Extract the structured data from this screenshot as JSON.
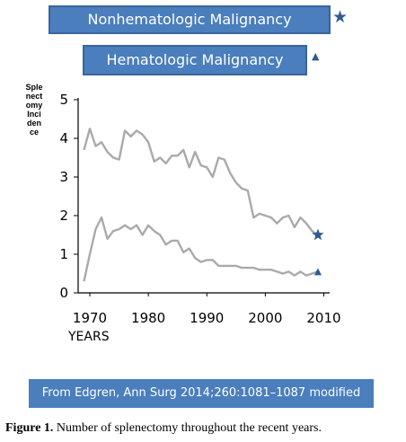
{
  "legend": {
    "nonheme_label": "Nonhematologic Malignancy",
    "heme_label": "Hematologic Malignancy",
    "star_glyph": "★",
    "triangle_glyph": "▲"
  },
  "source": "From Edgren, Ann Surg 2014;260:1081–1087 modified",
  "caption": {
    "label": "Figure 1.",
    "text": " Number of splenectomy throughout  the recent years."
  },
  "chart_data": {
    "type": "line",
    "title": "",
    "xlabel": "YEARS",
    "ylabel": "Splenectomy Incidence",
    "xlim": [
      1968,
      2011
    ],
    "ylim": [
      0,
      5
    ],
    "xticks": [
      1970,
      1980,
      1990,
      2000,
      2010
    ],
    "yticks": [
      0,
      1,
      2,
      3,
      4,
      5
    ],
    "grid": false,
    "legend_position": "top",
    "colors": {
      "line": "#aaaaaa",
      "marker": "#2f5b93"
    },
    "series": [
      {
        "name": "Nonhematologic Malignancy",
        "marker": "star",
        "x": [
          1969,
          1970,
          1971,
          1972,
          1973,
          1974,
          1975,
          1976,
          1977,
          1978,
          1979,
          1980,
          1981,
          1982,
          1983,
          1984,
          1985,
          1986,
          1987,
          1988,
          1989,
          1990,
          1991,
          1992,
          1993,
          1994,
          1995,
          1996,
          1997,
          1998,
          1999,
          2000,
          2001,
          2002,
          2003,
          2004,
          2005,
          2006,
          2007,
          2008,
          2009
        ],
        "y": [
          3.7,
          4.25,
          3.8,
          3.9,
          3.65,
          3.5,
          3.45,
          4.2,
          4.05,
          4.2,
          4.1,
          3.9,
          3.4,
          3.5,
          3.35,
          3.55,
          3.55,
          3.7,
          3.25,
          3.65,
          3.3,
          3.25,
          3.0,
          3.5,
          3.45,
          3.1,
          2.85,
          2.7,
          2.65,
          1.95,
          2.05,
          2.0,
          1.95,
          1.8,
          1.95,
          2.0,
          1.7,
          1.95,
          1.8,
          1.6,
          1.5
        ]
      },
      {
        "name": "Hematologic Malignancy",
        "marker": "triangle",
        "x": [
          1969,
          1970,
          1971,
          1972,
          1973,
          1974,
          1975,
          1976,
          1977,
          1978,
          1979,
          1980,
          1981,
          1982,
          1983,
          1984,
          1985,
          1986,
          1987,
          1988,
          1989,
          1990,
          1991,
          1992,
          1993,
          1994,
          1995,
          1996,
          1997,
          1998,
          1999,
          2000,
          2001,
          2002,
          2003,
          2004,
          2005,
          2006,
          2007,
          2008,
          2009
        ],
        "y": [
          0.3,
          1.0,
          1.65,
          1.95,
          1.4,
          1.6,
          1.65,
          1.75,
          1.65,
          1.75,
          1.5,
          1.75,
          1.6,
          1.5,
          1.25,
          1.35,
          1.35,
          1.05,
          1.15,
          0.9,
          0.8,
          0.85,
          0.85,
          0.7,
          0.7,
          0.7,
          0.7,
          0.65,
          0.65,
          0.65,
          0.6,
          0.6,
          0.6,
          0.55,
          0.5,
          0.55,
          0.45,
          0.55,
          0.45,
          0.5,
          0.55
        ]
      }
    ]
  }
}
